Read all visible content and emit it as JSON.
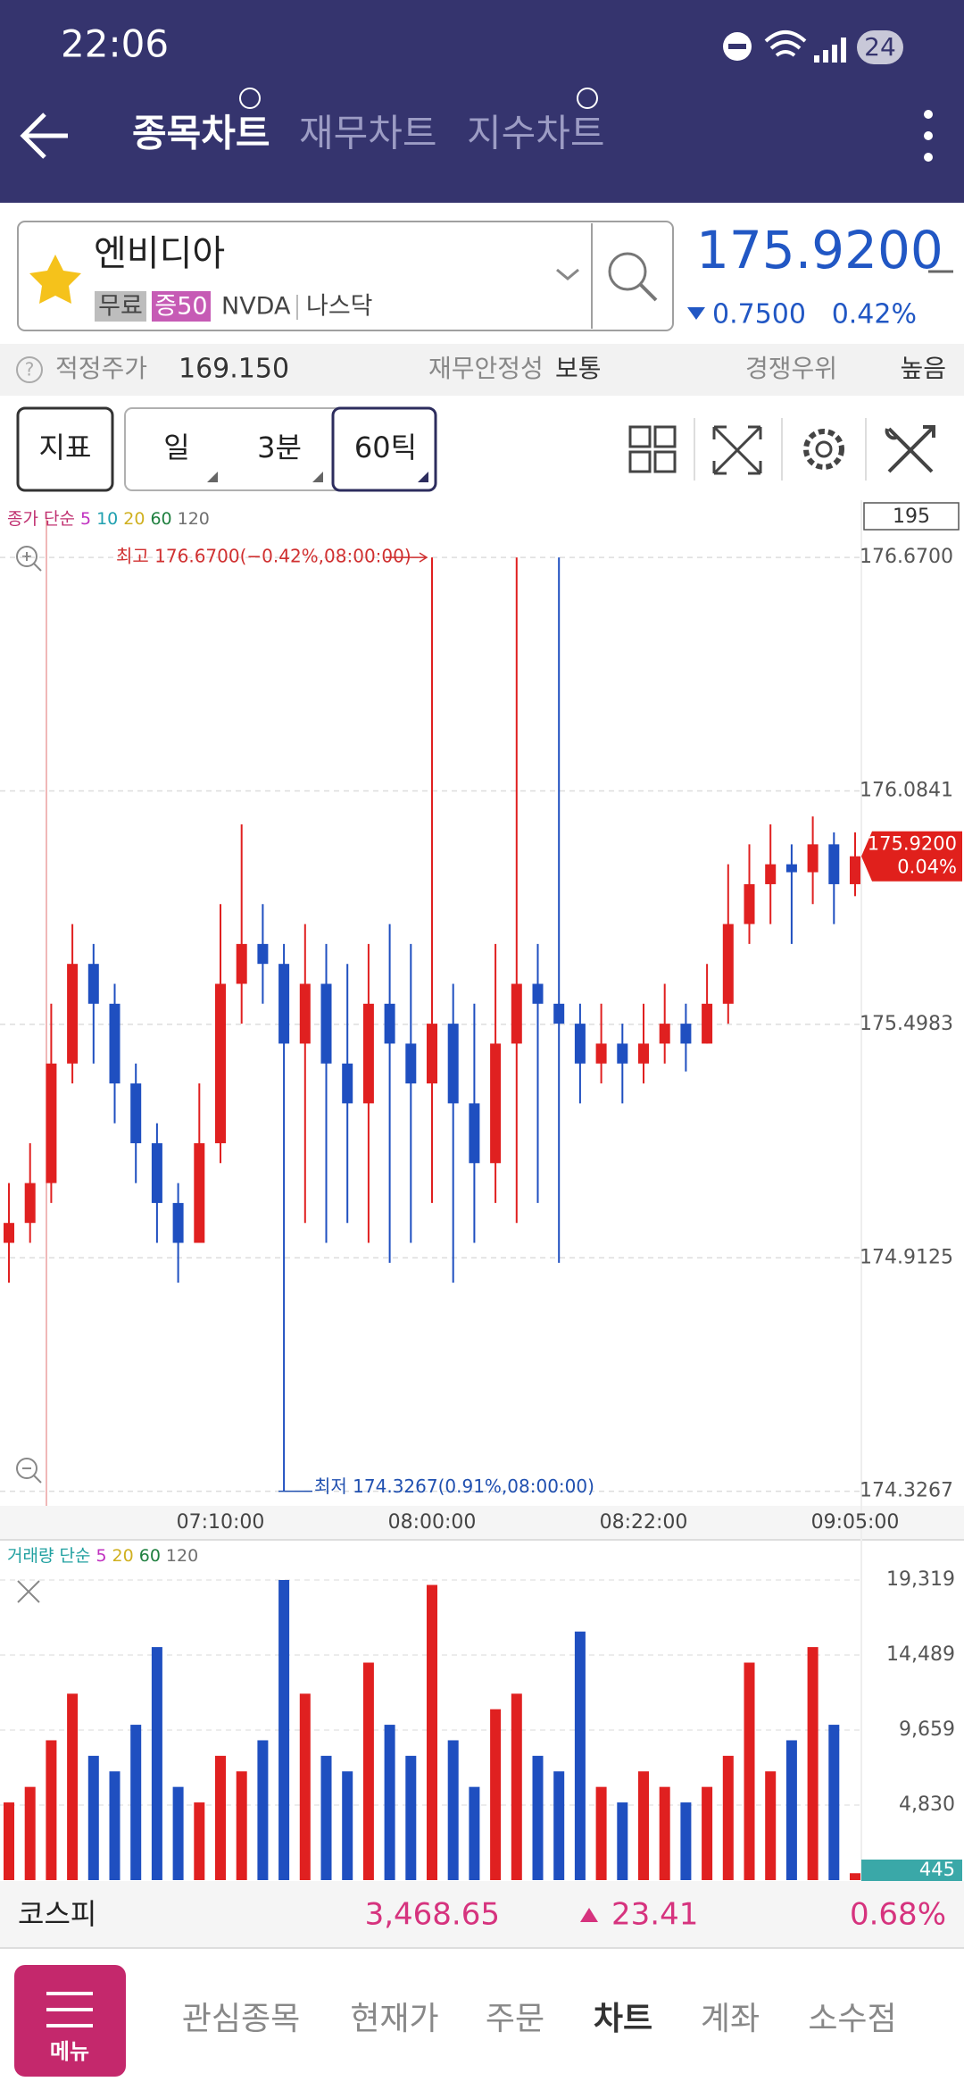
{
  "status_bar": {
    "time": "22:06",
    "battery": "24"
  },
  "header": {
    "tabs": [
      "종목차트",
      "재무차트",
      "지수차트"
    ]
  },
  "stock": {
    "name": "엔비디아",
    "tags": [
      "무료",
      "증50",
      "NVDA",
      "나스닥"
    ],
    "price": "175.9200",
    "change": "0.7500",
    "change_pct": "0.42%"
  },
  "info": {
    "fair_price_label": "적정주가",
    "fair_price": "169.150",
    "stability_label": "재무안정성",
    "stability": "보통",
    "advantage_label": "경쟁우위",
    "advantage": "높음"
  },
  "toolbar": {
    "indicator": "지표",
    "period": "일",
    "interval": "3분",
    "ticks": "60틱"
  },
  "chart_data": [
    {
      "type": "candlestick",
      "legend_title": "종가 단순",
      "ma_series": [
        {
          "name": "5",
          "color": "#c030c0"
        },
        {
          "name": "10",
          "color": "#20a0b0"
        },
        {
          "name": "20",
          "color": "#d0b020"
        },
        {
          "name": "60",
          "color": "#208040"
        },
        {
          "name": "120",
          "color": "#707070"
        }
      ],
      "count_box": "195",
      "high_annotation": "최고 176.6700(−0.42%,08:00:00)",
      "low_annotation": "최저 174.3267(0.91%,08:00:00)",
      "price_tag": "175.9200",
      "price_tag_pct": "0.04%",
      "up_color": "#e02020",
      "down_color": "#1f4fc0",
      "categories": [
        null,
        null,
        null,
        null,
        null,
        null,
        null,
        null,
        null,
        null,
        "07:10:00",
        null,
        null,
        null,
        null,
        null,
        null,
        null,
        null,
        null,
        "08:00:00",
        null,
        null,
        null,
        null,
        null,
        null,
        null,
        null,
        null,
        "08:22:00",
        null,
        null,
        null,
        null,
        null,
        null,
        null,
        null,
        null,
        "09:05:00"
      ],
      "open": [
        174.95,
        175.0,
        175.1,
        175.4,
        175.65,
        175.55,
        175.35,
        175.2,
        175.05,
        174.95,
        175.2,
        175.6,
        175.7,
        175.65,
        175.45,
        175.6,
        175.4,
        175.3,
        175.55,
        175.45,
        175.35,
        175.5,
        175.3,
        175.15,
        175.45,
        175.6,
        175.55,
        175.5,
        175.4,
        175.45,
        175.4,
        175.45,
        175.5,
        175.45,
        175.55,
        175.75,
        175.85,
        175.9,
        175.88,
        175.95,
        175.85
      ],
      "high": [
        175.1,
        175.2,
        175.55,
        175.75,
        175.7,
        175.6,
        175.4,
        175.25,
        175.1,
        175.35,
        175.8,
        176.0,
        175.8,
        175.7,
        175.75,
        175.7,
        175.65,
        175.7,
        175.75,
        175.7,
        176.67,
        175.6,
        175.55,
        175.7,
        176.67,
        175.7,
        176.67,
        175.55,
        175.55,
        175.5,
        175.55,
        175.6,
        175.55,
        175.65,
        175.9,
        175.95,
        176.0,
        175.95,
        176.02,
        175.98,
        175.98
      ],
      "low": [
        174.85,
        174.95,
        175.05,
        175.35,
        175.4,
        175.25,
        175.1,
        174.95,
        174.85,
        174.95,
        175.15,
        175.5,
        175.55,
        174.3267,
        175.0,
        174.95,
        175.0,
        174.95,
        174.9,
        174.95,
        175.05,
        174.85,
        174.95,
        175.05,
        175.0,
        175.05,
        174.9,
        175.3,
        175.35,
        175.3,
        175.35,
        175.4,
        175.38,
        175.45,
        175.5,
        175.7,
        175.75,
        175.7,
        175.8,
        175.75,
        175.82
      ],
      "close": [
        175.0,
        175.1,
        175.4,
        175.65,
        175.55,
        175.35,
        175.2,
        175.05,
        174.95,
        175.2,
        175.6,
        175.7,
        175.65,
        175.45,
        175.6,
        175.4,
        175.3,
        175.55,
        175.45,
        175.35,
        175.5,
        175.3,
        175.15,
        175.45,
        175.6,
        175.55,
        175.5,
        175.4,
        175.45,
        175.4,
        175.45,
        175.5,
        175.45,
        175.55,
        175.75,
        175.85,
        175.9,
        175.88,
        175.95,
        175.85,
        175.92
      ],
      "ylim": [
        174.29,
        176.78
      ],
      "yticks": [
        {
          "value": 176.67,
          "label": "176.6700"
        },
        {
          "value": 176.0841,
          "label": "176.0841"
        },
        {
          "value": 175.4983,
          "label": "175.4983"
        },
        {
          "value": 174.9125,
          "label": "174.9125"
        },
        {
          "value": 174.3267,
          "label": "174.3267"
        }
      ],
      "grid": true
    },
    {
      "type": "volume",
      "legend_title": "거래량 단순",
      "ma_series": [
        {
          "name": "5",
          "color": "#c030c0"
        },
        {
          "name": "20",
          "color": "#d0b020"
        },
        {
          "name": "60",
          "color": "#208040"
        },
        {
          "name": "120",
          "color": "#707070"
        }
      ],
      "last_tag": "445",
      "values": [
        5000,
        6000,
        9000,
        12000,
        8000,
        7000,
        10000,
        15000,
        6000,
        5000,
        8000,
        7000,
        9000,
        19319,
        12000,
        8000,
        7000,
        14000,
        10000,
        8000,
        19000,
        9000,
        6000,
        11000,
        12000,
        8000,
        7000,
        16000,
        6000,
        5000,
        7000,
        6000,
        5000,
        6000,
        8000,
        14000,
        7000,
        9000,
        15000,
        10000,
        445
      ],
      "ylim": [
        0,
        21560
      ],
      "yticks": [
        {
          "value": 19319,
          "label": "19,319"
        },
        {
          "value": 14489,
          "label": "14,489"
        },
        {
          "value": 9659,
          "label": "9,659"
        },
        {
          "value": 4830,
          "label": "4,830"
        }
      ],
      "grid": true
    }
  ],
  "index_bar": {
    "name": "코스피",
    "value": "3,468.65",
    "change": "23.41",
    "change_pct": "0.68%"
  },
  "nav": {
    "menu": "메뉴",
    "items": [
      "관심종목",
      "현재가",
      "주문",
      "차트",
      "계좌",
      "소수점"
    ]
  }
}
